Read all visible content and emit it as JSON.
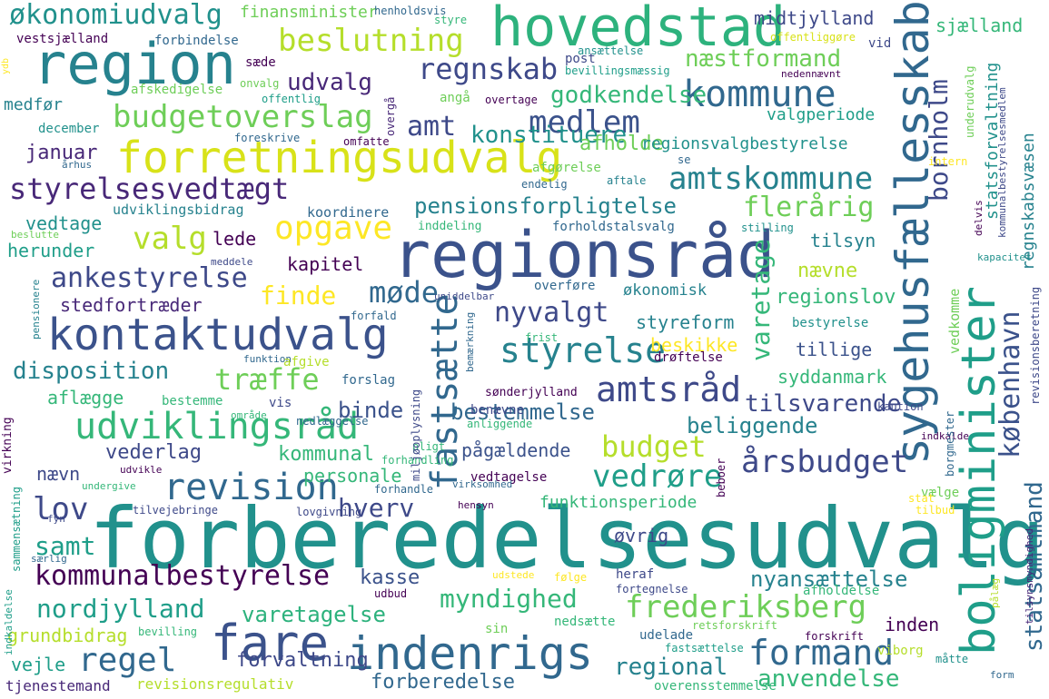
{
  "words": [
    {
      "text": "forberedelsesudvalg",
      "color": "#21918c"
    },
    {
      "text": "regionsråd",
      "color": "#3b528b"
    },
    {
      "text": "hovedstad",
      "color": "#2db27d"
    },
    {
      "text": "region",
      "color": "#26828e"
    },
    {
      "text": "forretningsudvalg",
      "color": "#d8e219"
    },
    {
      "text": "kontaktudvalg",
      "color": "#3b528b"
    },
    {
      "text": "indenrigs",
      "color": "#31688e"
    },
    {
      "text": "fare",
      "color": "#3b528b"
    },
    {
      "text": "boligminister",
      "color": "#1f9e89"
    },
    {
      "text": "sygehusfællesskab",
      "color": "#31688e"
    },
    {
      "text": "udviklingsråd",
      "color": "#35b779"
    },
    {
      "text": "kommune",
      "color": "#31688e"
    },
    {
      "text": "budgetoverslag",
      "color": "#6ece58"
    },
    {
      "text": "styrelsesvedtægt",
      "color": "#482878"
    },
    {
      "text": "revision",
      "color": "#31688e"
    },
    {
      "text": "beslutning",
      "color": "#b5de2b"
    },
    {
      "text": "kommunalbestyrelse",
      "color": "#440154"
    },
    {
      "text": "fastsætte",
      "color": "#31688e"
    },
    {
      "text": "økonomiudvalg",
      "color": "#21918c"
    },
    {
      "text": "frederiksberg",
      "color": "#6ece58"
    },
    {
      "text": "amtsråd",
      "color": "#3e4989"
    },
    {
      "text": "opgave",
      "color": "#fde725"
    },
    {
      "text": "ankestyrelse",
      "color": "#3e4989"
    },
    {
      "text": "amtskommune",
      "color": "#26828e"
    },
    {
      "text": "medlem",
      "color": "#3b528b"
    },
    {
      "text": "regnskab",
      "color": "#3e4989"
    },
    {
      "text": "styrelse",
      "color": "#26828e"
    },
    {
      "text": "årsbudget",
      "color": "#3e4989"
    },
    {
      "text": "formand",
      "color": "#31688e"
    },
    {
      "text": "budget",
      "color": "#b5de2b"
    },
    {
      "text": "regel",
      "color": "#31688e"
    },
    {
      "text": "myndighed",
      "color": "#35b779"
    },
    {
      "text": "vedrøre",
      "color": "#1f9e89"
    },
    {
      "text": "træffe",
      "color": "#6ece58"
    },
    {
      "text": "nordjylland",
      "color": "#1f9e89"
    },
    {
      "text": "varetagelse",
      "color": "#2db27d"
    },
    {
      "text": "anvendelse",
      "color": "#35b779"
    },
    {
      "text": "flerårig",
      "color": "#6ece58"
    },
    {
      "text": "valg",
      "color": "#b5de2b"
    },
    {
      "text": "disposition",
      "color": "#26828e"
    },
    {
      "text": "møde",
      "color": "#31688e"
    },
    {
      "text": "nyvalgt",
      "color": "#3e4989"
    },
    {
      "text": "næstformand",
      "color": "#6ece58"
    },
    {
      "text": "godkendelse",
      "color": "#35b779"
    },
    {
      "text": "konstituere",
      "color": "#21918c"
    },
    {
      "text": "pensionsforpligtelse",
      "color": "#26828e"
    },
    {
      "text": "finde",
      "color": "#fde725"
    },
    {
      "text": "lov",
      "color": "#3e4989"
    },
    {
      "text": "samt",
      "color": "#1f9e89"
    },
    {
      "text": "københavn",
      "color": "#3b528b"
    },
    {
      "text": "bornholm",
      "color": "#3e4989"
    },
    {
      "text": "statsamtmand",
      "color": "#31688e"
    },
    {
      "text": "hverv",
      "color": "#3e4989"
    },
    {
      "text": "udvalg",
      "color": "#482878"
    },
    {
      "text": "amt",
      "color": "#3e4989"
    },
    {
      "text": "varetage",
      "color": "#35b779"
    },
    {
      "text": "kommunal",
      "color": "#35b779"
    },
    {
      "text": "binde",
      "color": "#3b528b"
    },
    {
      "text": "bestemmelse",
      "color": "#31688e"
    },
    {
      "text": "tilsvarende",
      "color": "#3e4989"
    },
    {
      "text": "januar",
      "color": "#482878"
    },
    {
      "text": "nyansættelse",
      "color": "#26828e"
    },
    {
      "text": "regional",
      "color": "#26828e"
    },
    {
      "text": "forbere­delse",
      "color": "#31688e"
    },
    {
      "text": "forvaltning",
      "color": "#3e4989"
    },
    {
      "text": "inden",
      "color": "#440154"
    },
    {
      "text": "kasse",
      "color": "#3b528b"
    },
    {
      "text": "vederlag",
      "color": "#3e4989"
    },
    {
      "text": "nævn",
      "color": "#3e4989"
    },
    {
      "text": "beliggende",
      "color": "#26828e"
    },
    {
      "text": "afholde",
      "color": "#6ece58"
    },
    {
      "text": "regionsvalgbestyrelse",
      "color": "#21918c"
    },
    {
      "text": "valgperiode",
      "color": "#1f9e89"
    },
    {
      "text": "lede",
      "color": "#440154"
    },
    {
      "text": "kapitel",
      "color": "#440154"
    },
    {
      "text": "nævne",
      "color": "#b5de2b"
    },
    {
      "text": "tilsyn",
      "color": "#26828e"
    },
    {
      "text": "regionslov",
      "color": "#35b779"
    },
    {
      "text": "styreform",
      "color": "#26828e"
    },
    {
      "text": "tillige",
      "color": "#3b528b"
    },
    {
      "text": "syddanmark",
      "color": "#35b779"
    },
    {
      "text": "beskikke",
      "color": "#fde725"
    },
    {
      "text": "økonomisk",
      "color": "#26828e"
    },
    {
      "text": "personale",
      "color": "#35b779"
    },
    {
      "text": "pågældende",
      "color": "#3b528b"
    },
    {
      "text": "vedtage",
      "color": "#21918c"
    },
    {
      "text": "herunder",
      "color": "#1f9e89"
    },
    {
      "text": "stedfortræder",
      "color": "#482878"
    },
    {
      "text": "aflægge",
      "color": "#35b779"
    },
    {
      "text": "grundbidrag",
      "color": "#b5de2b"
    },
    {
      "text": "vejle",
      "color": "#1f9e89"
    },
    {
      "text": "tjenestemand",
      "color": "#482878"
    },
    {
      "text": "revisionsregulativ",
      "color": "#b5de2b"
    },
    {
      "text": "funktionsperiode",
      "color": "#35b779"
    },
    {
      "text": "øvrig",
      "color": "#3e4989"
    },
    {
      "text": "udviklingsbidrag",
      "color": "#26828e"
    },
    {
      "text": "koordinere",
      "color": "#31688e"
    },
    {
      "text": "medfør",
      "color": "#26828e"
    },
    {
      "text": "december",
      "color": "#21918c"
    },
    {
      "text": "afskedigelse",
      "color": "#6ece58"
    },
    {
      "text": "forbindelse",
      "color": "#31688e"
    },
    {
      "text": "vestsjælland",
      "color": "#440154"
    },
    {
      "text": "finansminister",
      "color": "#6ece58"
    },
    {
      "text": "midtjylland",
      "color": "#3e4989"
    },
    {
      "text": "sjælland",
      "color": "#35b779"
    },
    {
      "text": "statsforvaltning",
      "color": "#21918c"
    },
    {
      "text": "regnskabsvæsen",
      "color": "#26828e"
    },
    {
      "text": "henholdsvis",
      "color": "#31688e"
    },
    {
      "text": "styre",
      "color": "#35b779"
    },
    {
      "text": "offentliggøre",
      "color": "#d8e219"
    },
    {
      "text": "vid",
      "color": "#3e4989"
    },
    {
      "text": "ansættelse",
      "color": "#21918c"
    },
    {
      "text": "post",
      "color": "#3e4989"
    },
    {
      "text": "bevillingsmæssig",
      "color": "#1f9e89"
    },
    {
      "text": "nedennævnt",
      "color": "#440154"
    },
    {
      "text": "sæde",
      "color": "#440154"
    },
    {
      "text": "onvalg",
      "color": "#6ece58"
    },
    {
      "text": "offentlig",
      "color": "#1f9e89"
    },
    {
      "text": "foreskrive",
      "color": "#31688e"
    },
    {
      "text": "omfatte",
      "color": "#440154"
    },
    {
      "text": "angå",
      "color": "#6ece58"
    },
    {
      "text": "overtage",
      "color": "#440154"
    },
    {
      "text": "afgørelse",
      "color": "#6ece58"
    },
    {
      "text": "se",
      "color": "#31688e"
    },
    {
      "text": "intern",
      "color": "#fde725"
    },
    {
      "text": "aftale",
      "color": "#26828e"
    },
    {
      "text": "endelig",
      "color": "#31688e"
    },
    {
      "text": "inddeling",
      "color": "#35b779"
    },
    {
      "text": "forholdstalsvalg",
      "color": "#31688e"
    },
    {
      "text": "stilling",
      "color": "#21918c"
    },
    {
      "text": "meddele",
      "color": "#3e4989"
    },
    {
      "text": "beslutte",
      "color": "#6ece58"
    },
    {
      "text": "århus",
      "color": "#31688e"
    },
    {
      "text": "kapacitet",
      "color": "#21918c"
    },
    {
      "text": "bestyrelse",
      "color": "#21918c"
    },
    {
      "text": "unidde­lbar",
      "color": "#3e4989"
    },
    {
      "text": "overføre",
      "color": "#31688e"
    },
    {
      "text": "forfald",
      "color": "#31688e"
    },
    {
      "text": "frist",
      "color": "#35b779"
    },
    {
      "text": "funktion",
      "color": "#31688e"
    },
    {
      "text": "afgive",
      "color": "#b5de2b"
    },
    {
      "text": "forslag",
      "color": "#31688e"
    },
    {
      "text": "drøftelse",
      "color": "#440154"
    },
    {
      "text": "sønderjylland",
      "color": "#440154"
    },
    {
      "text": "kaution",
      "color": "#3e4989"
    },
    {
      "text": "bestemme",
      "color": "#35b779"
    },
    {
      "text": "vis",
      "color": "#3e4989"
    },
    {
      "text": "område",
      "color": "#35b779"
    },
    {
      "text": "nedlæggelse",
      "color": "#31688e"
    },
    {
      "text": "benævne",
      "color": "#3e4989"
    },
    {
      "text": "anliggende",
      "color": "#35b779"
    },
    {
      "text": "indkalde",
      "color": "#440154"
    },
    {
      "text": "pligt",
      "color": "#35b779"
    },
    {
      "text": "forhandling",
      "color": "#35b779"
    },
    {
      "text": "vedtagelse",
      "color": "#440154"
    },
    {
      "text": "udvikle",
      "color": "#440154"
    },
    {
      "text": "undergive",
      "color": "#35b779"
    },
    {
      "text": "forhandle",
      "color": "#31688e"
    },
    {
      "text": "virksomhed",
      "color": "#31688e"
    },
    {
      "text": "hensyn",
      "color": "#440154"
    },
    {
      "text": "tilvejebringe",
      "color": "#3e4989"
    },
    {
      "text": "lovgivning",
      "color": "#3e4989"
    },
    {
      "text": "vælge",
      "color": "#6ece58"
    },
    {
      "text": "stat",
      "color": "#fde725"
    },
    {
      "text": "tilbud",
      "color": "#fde725"
    },
    {
      "text": "udstede",
      "color": "#fde725"
    },
    {
      "text": "følge",
      "color": "#fde725"
    },
    {
      "text": "heraf",
      "color": "#3e4989"
    },
    {
      "text": "fortegnelse",
      "color": "#3e4989"
    },
    {
      "text": "afholdelse",
      "color": "#35b779"
    },
    {
      "text": "udbud",
      "color": "#440154"
    },
    {
      "text": "nedsætte",
      "color": "#35b779"
    },
    {
      "text": "sin",
      "color": "#6ece58"
    },
    {
      "text": "udelade",
      "color": "#31688e"
    },
    {
      "text": "retsforskrift",
      "color": "#6ece58"
    },
    {
      "text": "forskrift",
      "color": "#440154"
    },
    {
      "text": "fastsættelse",
      "color": "#1f9e89"
    },
    {
      "text": "viborg",
      "color": "#b5de2b"
    },
    {
      "text": "måtte",
      "color": "#21918c"
    },
    {
      "text": "form",
      "color": "#31688e"
    },
    {
      "text": "overensstemmelse",
      "color": "#35b779"
    },
    {
      "text": "bevilling",
      "color": "#35b779"
    },
    {
      "text": "fyn",
      "color": "#3e4989"
    },
    {
      "text": "særlig",
      "color": "#31688e"
    },
    {
      "text": "ydb",
      "color": "#fde725"
    },
    {
      "text": "overgå",
      "color": "#482878"
    },
    {
      "text": "underudvalg",
      "color": "#6ece58"
    },
    {
      "text": "kommunalbestyrelsesmedlem",
      "color": "#3e4989"
    },
    {
      "text": "delvis",
      "color": "#440154"
    },
    {
      "text": "vedkomme",
      "color": "#6ece58"
    },
    {
      "text": "revisionsberetning",
      "color": "#3e4989"
    },
    {
      "text": "borgmester",
      "color": "#31688e"
    },
    {
      "text": "tilsynsmyndighed",
      "color": "#482878"
    },
    {
      "text": "pålæg",
      "color": "#b5de2b"
    },
    {
      "text": "beboer",
      "color": "#440154"
    },
    {
      "text": "bemærkning",
      "color": "#31688e"
    },
    {
      "text": "miljøoplysning",
      "color": "#3e4989"
    },
    {
      "text": "virkning",
      "color": "#440154"
    },
    {
      "text": "sammensætning",
      "color": "#1f9e89"
    },
    {
      "text": "indkaldelse",
      "color": "#1f9e89"
    },
    {
      "text": "pensionere",
      "color": "#26828e"
    }
  ]
}
